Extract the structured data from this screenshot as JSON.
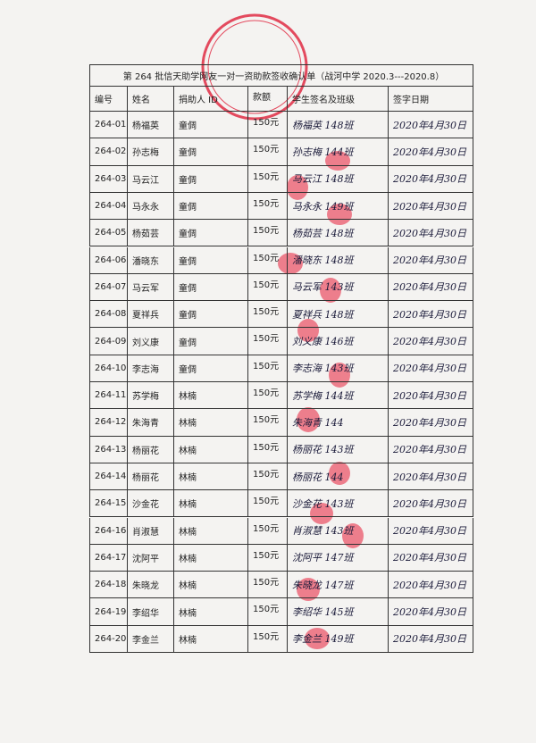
{
  "table": {
    "title": "第 264 批信天助学网友一对一资助款签收确认单（战河中学 2020.3---2020.8）",
    "headers": [
      "编号",
      "姓名",
      "捐助人 ID",
      "款额",
      "学生签名及班级",
      "签字日期"
    ],
    "rows": [
      [
        "264-01",
        "杨福英",
        "童倜",
        "150元",
        "杨福英 148班",
        "2020年4月30日"
      ],
      [
        "264-02",
        "孙志梅",
        "童倜",
        "150元",
        "孙志梅 144班",
        "2020年4月30日"
      ],
      [
        "264-03",
        "马云江",
        "童倜",
        "150元",
        "马云江 148班",
        "2020年4月30日"
      ],
      [
        "264-04",
        "马永永",
        "童倜",
        "150元",
        "马永永 149班",
        "2020年4月30日"
      ],
      [
        "264-05",
        "杨茹芸",
        "童倜",
        "150元",
        "杨茹芸 148班",
        "2020年4月30日"
      ],
      [
        "264-06",
        "潘晓东",
        "童倜",
        "150元",
        "潘晓东 148班",
        "2020年4月30日"
      ],
      [
        "264-07",
        "马云军",
        "童倜",
        "150元",
        "马云军 143班",
        "2020年4月30日"
      ],
      [
        "264-08",
        "夏祥兵",
        "童倜",
        "150元",
        "夏祥兵 148班",
        "2020年4月30日"
      ],
      [
        "264-09",
        "刘义康",
        "童倜",
        "150元",
        "刘义康 146班",
        "2020年4月30日"
      ],
      [
        "264-10",
        "李志海",
        "童倜",
        "150元",
        "李志海 143班",
        "2020年4月30日"
      ],
      [
        "264-11",
        "苏学梅",
        "林楠",
        "150元",
        "苏学梅 144班",
        "2020年4月30日"
      ],
      [
        "264-12",
        "朱海青",
        "林楠",
        "150元",
        "朱海青 144",
        "2020年4月30日"
      ],
      [
        "264-13",
        "杨丽花",
        "林楠",
        "150元",
        "杨丽花 143班",
        "2020年4月30日"
      ],
      [
        "264-14",
        "杨丽花",
        "林楠",
        "150元",
        "杨丽花 144",
        "2020年4月30日"
      ],
      [
        "264-15",
        "沙金花",
        "林楠",
        "150元",
        "沙金花 143班",
        "2020年4月30日"
      ],
      [
        "264-16",
        "肖淑慧",
        "林楠",
        "150元",
        "肖淑慧 143班",
        "2020年4月30日"
      ],
      [
        "264-17",
        "沈阿平",
        "林楠",
        "150元",
        "沈阿平 147班",
        "2020年4月30日"
      ],
      [
        "264-18",
        "朱晓龙",
        "林楠",
        "150元",
        "朱晓龙 147班",
        "2020年4月30日"
      ],
      [
        "264-19",
        "李绍华",
        "林楠",
        "150元",
        "李绍华 145班",
        "2020年4月30日"
      ],
      [
        "264-20",
        "李金兰",
        "林楠",
        "150元",
        "李金兰 149班",
        "2020年4月30日"
      ]
    ]
  }
}
